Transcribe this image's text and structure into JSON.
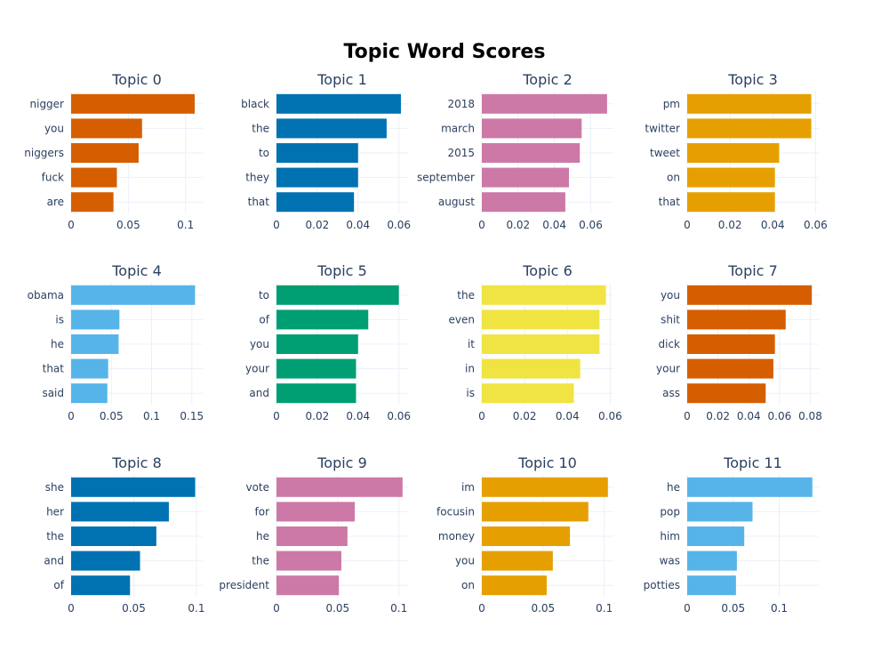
{
  "chart_data": {
    "type": "bar",
    "orientation": "horizontal",
    "title": "Topic Word Scores",
    "grid": true,
    "panels": [
      {
        "title": "Topic 0",
        "color": "#D55E00",
        "xticks": [
          0,
          0.05,
          0.1
        ],
        "xtick_labels": [
          "0",
          "0.05",
          "0.1"
        ],
        "xlim": [
          0,
          0.115
        ],
        "categories": [
          "nigger",
          "you",
          "niggers",
          "fuck",
          "are"
        ],
        "values": [
          0.108,
          0.062,
          0.059,
          0.04,
          0.037
        ]
      },
      {
        "title": "Topic 1",
        "color": "#0072B2",
        "xticks": [
          0,
          0.02,
          0.04,
          0.06
        ],
        "xtick_labels": [
          "0",
          "0.02",
          "0.04",
          "0.06"
        ],
        "xlim": [
          0,
          0.0645
        ],
        "categories": [
          "black",
          "the",
          "to",
          "they",
          "that"
        ],
        "values": [
          0.061,
          0.054,
          0.04,
          0.04,
          0.038
        ]
      },
      {
        "title": "Topic 2",
        "color": "#CC79A7",
        "xticks": [
          0,
          0.02,
          0.04,
          0.06
        ],
        "xtick_labels": [
          "0",
          "0.02",
          "0.04",
          "0.06"
        ],
        "xlim": [
          0,
          0.0725
        ],
        "categories": [
          "2018",
          "march",
          "2015",
          "september",
          "august"
        ],
        "values": [
          0.069,
          0.055,
          0.054,
          0.048,
          0.046
        ]
      },
      {
        "title": "Topic 3",
        "color": "#E69F00",
        "xticks": [
          0,
          0.02,
          0.04,
          0.06
        ],
        "xtick_labels": [
          "0",
          "0.02",
          "0.04",
          "0.06"
        ],
        "xlim": [
          0,
          0.0615
        ],
        "categories": [
          "pm",
          "twitter",
          "tweet",
          "on",
          "that"
        ],
        "values": [
          0.058,
          0.058,
          0.043,
          0.041,
          0.041
        ]
      },
      {
        "title": "Topic 4",
        "color": "#56B4E9",
        "xticks": [
          0,
          0.05,
          0.1,
          0.15
        ],
        "xtick_labels": [
          "0",
          "0.05",
          "0.1",
          "0.15"
        ],
        "xlim": [
          0,
          0.1635
        ],
        "categories": [
          "obama",
          "is",
          "he",
          "that",
          "said"
        ],
        "values": [
          0.154,
          0.06,
          0.059,
          0.046,
          0.045
        ]
      },
      {
        "title": "Topic 5",
        "color": "#009E73",
        "xticks": [
          0,
          0.02,
          0.04,
          0.06
        ],
        "xtick_labels": [
          "0",
          "0.02",
          "0.04",
          "0.06"
        ],
        "xlim": [
          0,
          0.0645
        ],
        "categories": [
          "to",
          "of",
          "you",
          "your",
          "and"
        ],
        "values": [
          0.06,
          0.045,
          0.04,
          0.039,
          0.039
        ]
      },
      {
        "title": "Topic 6",
        "color": "#F0E442",
        "xticks": [
          0,
          0.02,
          0.04,
          0.06
        ],
        "xtick_labels": [
          "0",
          "0.02",
          "0.04",
          "0.06"
        ],
        "xlim": [
          0,
          0.0615
        ],
        "categories": [
          "the",
          "even",
          "it",
          "in",
          "is"
        ],
        "values": [
          0.058,
          0.055,
          0.055,
          0.046,
          0.043
        ]
      },
      {
        "title": "Topic 7",
        "color": "#D55E00",
        "xticks": [
          0,
          0.02,
          0.04,
          0.06,
          0.08
        ],
        "xtick_labels": [
          "0",
          "0.02",
          "0.04",
          "0.06",
          "0.08"
        ],
        "xlim": [
          0,
          0.0855
        ],
        "categories": [
          "you",
          "shit",
          "dick",
          "your",
          "ass"
        ],
        "values": [
          0.081,
          0.064,
          0.057,
          0.056,
          0.051
        ]
      },
      {
        "title": "Topic 8",
        "color": "#0072B2",
        "xticks": [
          0,
          0.05,
          0.1
        ],
        "xtick_labels": [
          "0",
          "0.05",
          "0.1"
        ],
        "xlim": [
          0,
          0.105
        ],
        "categories": [
          "she",
          "her",
          "the",
          "and",
          "of"
        ],
        "values": [
          0.099,
          0.078,
          0.068,
          0.055,
          0.047
        ]
      },
      {
        "title": "Topic 9",
        "color": "#CC79A7",
        "xticks": [
          0,
          0.05,
          0.1
        ],
        "xtick_labels": [
          "0",
          "0.05",
          "0.1"
        ],
        "xlim": [
          0,
          0.1075
        ],
        "categories": [
          "vote",
          "for",
          "he",
          "the",
          "president"
        ],
        "values": [
          0.103,
          0.064,
          0.058,
          0.053,
          0.051
        ]
      },
      {
        "title": "Topic 10",
        "color": "#E69F00",
        "xticks": [
          0,
          0.05,
          0.1
        ],
        "xtick_labels": [
          "0",
          "0.05",
          "0.1"
        ],
        "xlim": [
          0,
          0.1075
        ],
        "categories": [
          "im",
          "focusin",
          "money",
          "you",
          "on"
        ],
        "values": [
          0.103,
          0.087,
          0.072,
          0.058,
          0.053
        ]
      },
      {
        "title": "Topic 11",
        "color": "#56B4E9",
        "xticks": [
          0,
          0.05,
          0.1
        ],
        "xtick_labels": [
          "0",
          "0.05",
          "0.1"
        ],
        "xlim": [
          0,
          0.143
        ],
        "categories": [
          "he",
          "pop",
          "him",
          "was",
          "potties"
        ],
        "values": [
          0.136,
          0.071,
          0.062,
          0.054,
          0.053
        ]
      }
    ]
  }
}
